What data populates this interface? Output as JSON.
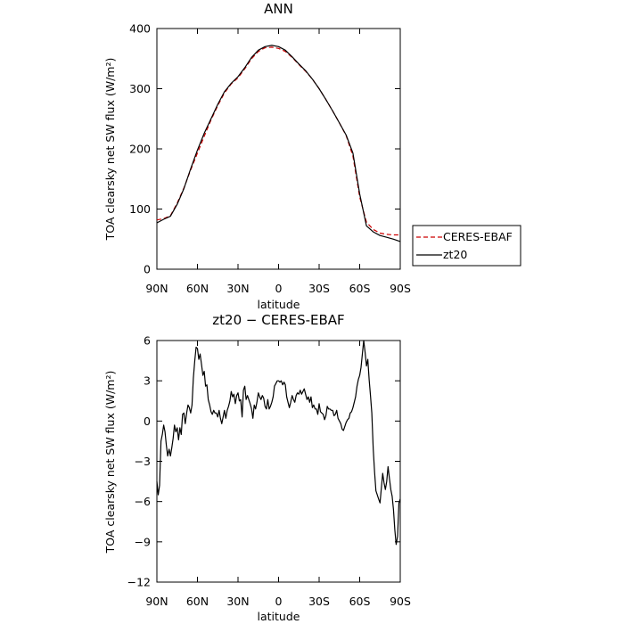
{
  "chart_data": [
    {
      "type": "line",
      "title": "ANN",
      "xlabel": "latitude",
      "ylabel": "TOA clearsky net SW flux (W/m²)",
      "xlim": [
        "90N",
        "90S"
      ],
      "ylim": [
        0,
        400
      ],
      "x_ticks": [
        "90N",
        "60N",
        "30N",
        "0",
        "30S",
        "60S",
        "90S"
      ],
      "y_ticks": [
        "0",
        "100",
        "200",
        "300",
        "400"
      ],
      "grid": false,
      "legend_position": "right-lower-outside",
      "x_deg": [
        90,
        85,
        80,
        75,
        70,
        65,
        60,
        55,
        50,
        45,
        40,
        35,
        30,
        25,
        20,
        15,
        10,
        5,
        0,
        -5,
        -10,
        -15,
        -20,
        -25,
        -30,
        -35,
        -40,
        -45,
        -50,
        -55,
        -60,
        -65,
        -70,
        -75,
        -80,
        -85,
        -90
      ],
      "series": [
        {
          "name": "CERES-EBAF",
          "color": "#cc0000",
          "dash": "dashed",
          "values": [
            82,
            84,
            89,
            110,
            135,
            165,
            193,
            221,
            248,
            272,
            293,
            308,
            318,
            333,
            350,
            362,
            368,
            369,
            367,
            362,
            352,
            340,
            329,
            316,
            300,
            282,
            263,
            243,
            222,
            188,
            120,
            78,
            66,
            60,
            58,
            57,
            57
          ]
        },
        {
          "name": "zt20",
          "color": "#000000",
          "dash": "solid",
          "values": [
            77,
            83,
            88,
            108,
            134,
            167,
            198,
            226,
            250,
            274,
            295,
            309,
            320,
            335,
            352,
            364,
            370,
            372,
            370,
            364,
            353,
            341,
            330,
            316,
            300,
            282,
            263,
            243,
            223,
            193,
            125,
            72,
            62,
            56,
            53,
            50,
            46
          ]
        }
      ]
    },
    {
      "type": "line",
      "title": "zt20 − CERES-EBAF",
      "xlabel": "latitude",
      "ylabel": "TOA clearsky net SW flux (W/m²)",
      "xlim": [
        "90N",
        "90S"
      ],
      "ylim": [
        -12,
        6
      ],
      "x_ticks": [
        "90N",
        "60N",
        "30N",
        "0",
        "30S",
        "60S",
        "90S"
      ],
      "y_ticks": [
        "−12",
        "−9",
        "−6",
        "−3",
        "0",
        "3",
        "6"
      ],
      "grid": false,
      "x_deg": [
        90,
        89,
        88,
        87,
        86,
        85,
        84,
        83,
        82,
        81,
        80,
        79,
        78,
        77,
        76,
        75,
        74,
        73,
        72,
        71,
        70,
        69,
        68,
        67,
        66,
        65,
        64,
        63,
        62,
        61,
        60,
        59,
        58,
        57,
        56,
        55,
        54,
        53,
        52,
        51,
        50,
        49,
        48,
        47,
        46,
        45,
        44,
        43,
        42,
        41,
        40,
        39,
        38,
        37,
        36,
        35,
        34,
        33,
        32,
        31,
        30,
        29,
        28,
        27,
        26,
        25,
        24,
        23,
        22,
        21,
        20,
        19,
        18,
        17,
        16,
        15,
        14,
        13,
        12,
        11,
        10,
        9,
        8,
        7,
        6,
        5,
        4,
        3,
        2,
        1,
        0,
        -1,
        -2,
        -3,
        -4,
        -5,
        -6,
        -7,
        -8,
        -9,
        -10,
        -11,
        -12,
        -13,
        -14,
        -15,
        -16,
        -17,
        -18,
        -19,
        -20,
        -21,
        -22,
        -23,
        -24,
        -25,
        -26,
        -27,
        -28,
        -29,
        -30,
        -31,
        -32,
        -33,
        -34,
        -35,
        -36,
        -37,
        -38,
        -39,
        -40,
        -41,
        -42,
        -43,
        -44,
        -45,
        -46,
        -47,
        -48,
        -49,
        -50,
        -51,
        -52,
        -53,
        -54,
        -55,
        -56,
        -57,
        -58,
        -59,
        -60,
        -61,
        -62,
        -63,
        -64,
        -65,
        -66,
        -67,
        -68,
        -69,
        -70,
        -71,
        -72,
        -73,
        -74,
        -75,
        -76,
        -77,
        -78,
        -79,
        -80,
        -81,
        -82,
        -83,
        -84,
        -85,
        -86,
        -87,
        -88,
        -89,
        -90
      ],
      "series": [
        {
          "name": "",
          "color": "#000000",
          "dash": "solid",
          "values": [
            -4.5,
            -5.5,
            -4.8,
            -1.5,
            -1.0,
            -0.3,
            -0.8,
            -1.8,
            -2.6,
            -2.1,
            -2.6,
            -2.0,
            -1.3,
            -0.3,
            -0.8,
            -0.5,
            -1.4,
            -0.5,
            -1.0,
            0.5,
            0.6,
            -0.2,
            0.6,
            1.2,
            1.0,
            0.6,
            1.2,
            3.2,
            4.5,
            5.5,
            5.4,
            4.6,
            5.0,
            4.2,
            3.4,
            3.7,
            2.6,
            2.7,
            1.6,
            1.2,
            0.7,
            0.5,
            0.8,
            0.6,
            0.6,
            0.3,
            0.8,
            0.2,
            -0.2,
            0.3,
            0.8,
            0.2,
            0.8,
            1.1,
            1.5,
            2.2,
            1.8,
            2.0,
            1.3,
            1.9,
            2.1,
            1.5,
            1.6,
            0.3,
            2.3,
            2.6,
            1.6,
            1.9,
            1.6,
            1.3,
            0.9,
            0.2,
            1.2,
            0.9,
            1.4,
            2.1,
            1.8,
            1.6,
            1.9,
            1.7,
            1.1,
            0.9,
            1.6,
            0.9,
            1.1,
            1.4,
            1.8,
            2.6,
            2.8,
            3.0,
            3.0,
            2.9,
            3.0,
            2.7,
            2.9,
            2.7,
            1.8,
            1.4,
            1.0,
            1.4,
            1.9,
            1.6,
            1.4,
            1.9,
            2.1,
            2.0,
            2.3,
            2.0,
            2.2,
            2.4,
            2.0,
            1.6,
            1.8,
            1.4,
            1.8,
            1.0,
            1.2,
            0.9,
            0.9,
            0.5,
            1.3,
            0.7,
            0.6,
            0.5,
            0.1,
            0.4,
            1.1,
            0.9,
            0.9,
            0.8,
            0.8,
            0.4,
            0.5,
            0.8,
            0.2,
            0.0,
            -0.2,
            -0.6,
            -0.7,
            -0.4,
            -0.1,
            0.1,
            0.2,
            0.6,
            0.7,
            1.0,
            1.4,
            1.8,
            2.6,
            3.1,
            3.4,
            4.0,
            5.0,
            6.0,
            5.1,
            4.1,
            4.6,
            3.1,
            1.9,
            0.6,
            -2.1,
            -3.8,
            -5.2,
            -5.5,
            -5.8,
            -6.1,
            -5.0,
            -3.9,
            -4.6,
            -5.1,
            -4.5,
            -3.4,
            -4.3,
            -5.1,
            -5.6,
            -6.6,
            -8.1,
            -9.2,
            -8.6,
            -6.1,
            -5.8
          ]
        }
      ]
    }
  ]
}
